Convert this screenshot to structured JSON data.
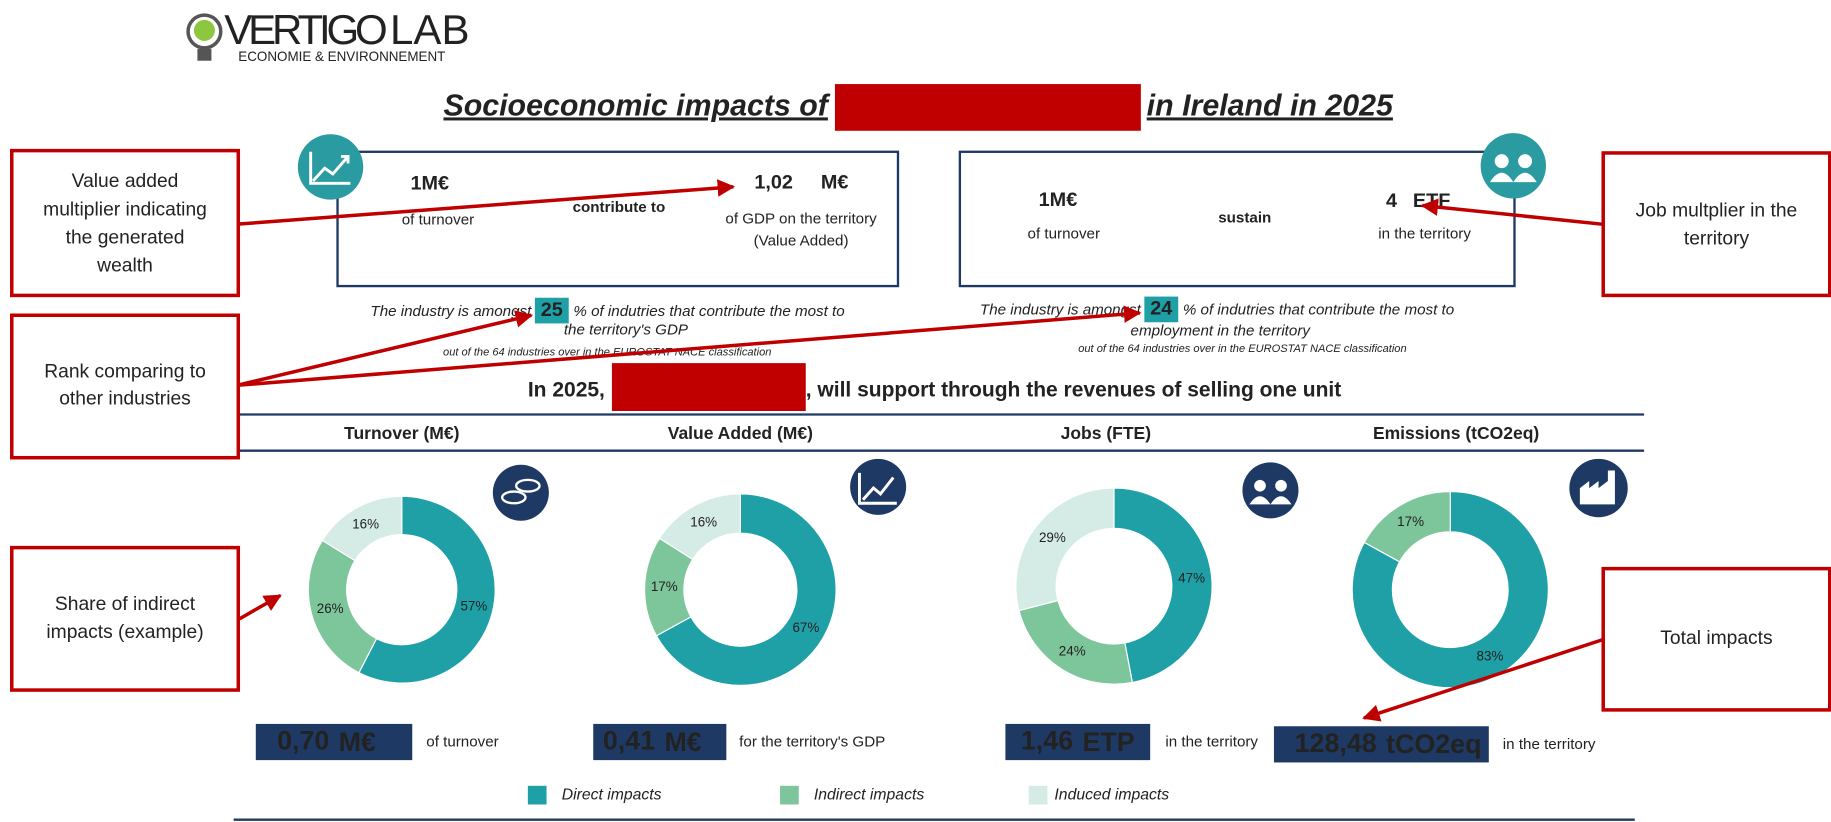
{
  "logo": {
    "name": "VERTIGO",
    "name_accent": "LAB",
    "tagline": "ECONOMIE & ENVIRONNEMENT"
  },
  "title": {
    "before": "Socioeconomic impacts of",
    "after": "in Ireland in 2025"
  },
  "multipliers": [
    {
      "input": "1M€",
      "input_label": "of turnover",
      "verb": "contribute to",
      "output": "1,02",
      "output_unit": "M€",
      "output_label": [
        "of GDP on the territory",
        "(Value Added)"
      ],
      "rank_before": "The industry is amongst",
      "rank": 25,
      "rank_after": [
        "% of indutries that contribute the most to",
        "the territory's GDP"
      ],
      "note": "out of the 64 industries over in the EUROSTAT NACE classification"
    },
    {
      "input": "1M€",
      "input_label": "of turnover",
      "verb": "sustain",
      "output": "4",
      "output_unit": "ETF",
      "output_label": [
        "in the territory"
      ],
      "rank_before": "The industry is amongst",
      "rank": 24,
      "rank_after": [
        "% of indutries that contribute the most to",
        "employment in the territory"
      ],
      "note": "out of the 64 industries over in the EUROSTAT NACE classification"
    }
  ],
  "subtitle": {
    "before": "In 2025,",
    "after": ", will support through the revenues of selling one unit"
  },
  "colors": [
    "#1fa0a6",
    "#7dc59a",
    "#d4ece5"
  ],
  "panels": [
    {
      "title": "Turnover (M€)",
      "values": [
        57,
        26,
        16
      ],
      "value_labels": [
        "57%",
        "26%",
        "16%"
      ],
      "total": "0,70",
      "unit": "M€",
      "total_label": "of turnover"
    },
    {
      "title": "Value Added (M€)",
      "values": [
        67,
        17,
        16
      ],
      "value_labels": [
        "67%",
        "17%",
        "16%"
      ],
      "total": "0,41",
      "unit": "M€",
      "total_label": "for the territory's GDP"
    },
    {
      "title": "Jobs (FTE)",
      "values": [
        47,
        24,
        29
      ],
      "value_labels": [
        "47%",
        "24%",
        "29%"
      ],
      "total": "1,46",
      "unit": "ETP",
      "total_label": "in the territory"
    },
    {
      "title": "Emissions (tCO2eq)",
      "values": [
        83,
        17
      ],
      "value_labels": [
        "83%",
        "17%"
      ],
      "total": "128,48",
      "unit": "tCO2eq",
      "total_label": "in the territory"
    }
  ],
  "legend": [
    "Direct impacts",
    "Indirect impacts",
    "Induced impacts"
  ],
  "annotations": [
    {
      "lines": [
        "Value added",
        "multiplier indicating",
        "the generated",
        "wealth"
      ]
    },
    {
      "lines": [
        "Rank comparing to",
        "other industries"
      ]
    },
    {
      "lines": [
        "Share of indirect",
        "impacts (example)"
      ]
    },
    {
      "lines": [
        "Job multplier in the",
        "territory"
      ]
    },
    {
      "lines": [
        "Total impacts"
      ]
    }
  ]
}
